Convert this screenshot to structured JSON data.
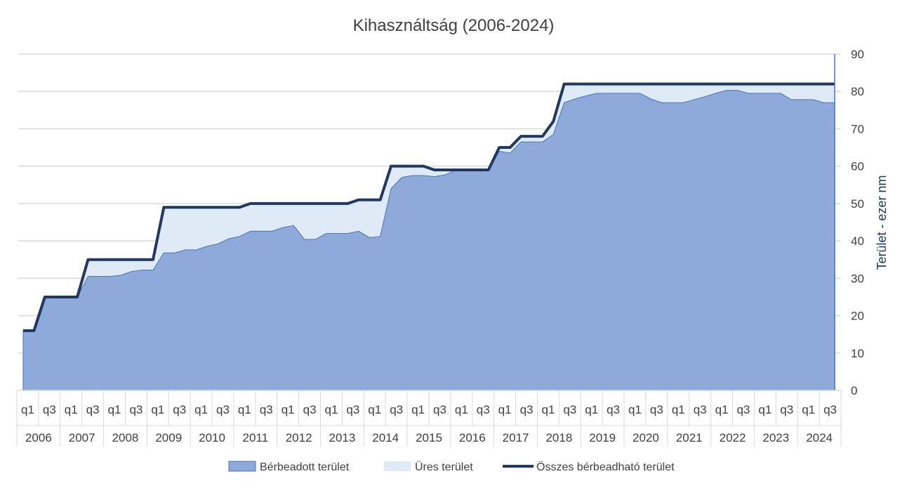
{
  "chart_data": {
    "type": "area",
    "title": "Kihasználtság (2006-2024)",
    "ylabel": "Terület - ezer nm",
    "ylim": [
      0,
      90
    ],
    "yticks": [
      0,
      10,
      20,
      30,
      40,
      50,
      60,
      70,
      80,
      90
    ],
    "y_axis_side": "right",
    "grid": true,
    "legend_position": "bottom",
    "years": [
      "2006",
      "2007",
      "2008",
      "2009",
      "2010",
      "2011",
      "2012",
      "2013",
      "2014",
      "2015",
      "2016",
      "2017",
      "2018",
      "2019",
      "2020",
      "2021",
      "2022",
      "2023",
      "2024"
    ],
    "quarter_tick_labels": [
      "q1",
      "q3"
    ],
    "x": [
      "2006 q1",
      "2006 q2",
      "2006 q3",
      "2006 q4",
      "2007 q1",
      "2007 q2",
      "2007 q3",
      "2007 q4",
      "2008 q1",
      "2008 q2",
      "2008 q3",
      "2008 q4",
      "2009 q1",
      "2009 q2",
      "2009 q3",
      "2009 q4",
      "2010 q1",
      "2010 q2",
      "2010 q3",
      "2010 q4",
      "2011 q1",
      "2011 q2",
      "2011 q3",
      "2011 q4",
      "2012 q1",
      "2012 q2",
      "2012 q3",
      "2012 q4",
      "2013 q1",
      "2013 q2",
      "2013 q3",
      "2013 q4",
      "2014 q1",
      "2014 q2",
      "2014 q3",
      "2014 q4",
      "2015 q1",
      "2015 q2",
      "2015 q3",
      "2015 q4",
      "2016 q1",
      "2016 q2",
      "2016 q3",
      "2016 q4",
      "2017 q1",
      "2017 q2",
      "2017 q3",
      "2017 q4",
      "2018 q1",
      "2018 q2",
      "2018 q3",
      "2018 q4",
      "2019 q1",
      "2019 q2",
      "2019 q3",
      "2019 q4",
      "2020 q1",
      "2020 q2",
      "2020 q3",
      "2020 q4",
      "2021 q1",
      "2021 q2",
      "2021 q3",
      "2021 q4",
      "2022 q1",
      "2022 q2",
      "2022 q3",
      "2022 q4",
      "2023 q1",
      "2023 q2",
      "2023 q3",
      "2023 q4",
      "2024 q1",
      "2024 q2",
      "2024 q3",
      "2024 q4"
    ],
    "series": [
      {
        "name": "Bérbeadott terület",
        "kind": "area",
        "color": "#8eaadb",
        "values": [
          16,
          16,
          25,
          25,
          25,
          25,
          30.5,
          30.5,
          30.5,
          30.8,
          31.8,
          32.2,
          32.2,
          36.8,
          36.8,
          37.6,
          37.6,
          38.6,
          39.2,
          40.6,
          41.2,
          42.6,
          42.6,
          42.6,
          43.6,
          44.1,
          40.4,
          40.4,
          42,
          42,
          42,
          42.6,
          40.9,
          41.2,
          54,
          57,
          57.5,
          57.5,
          57.2,
          57.7,
          59,
          59,
          59,
          59,
          64,
          63.5,
          66.5,
          66.5,
          66.5,
          68.5,
          77,
          78,
          78.8,
          79.5,
          79.5,
          79.5,
          79.5,
          79.5,
          78,
          77,
          77,
          77,
          77.8,
          78.6,
          79.5,
          80.3,
          80.3,
          79.5,
          79.5,
          79.5,
          79.5,
          77.8,
          77.8,
          77.8,
          77,
          77
        ]
      },
      {
        "name": "Üres terület",
        "kind": "area",
        "color": "#deebf7",
        "values": [
          0,
          0,
          0,
          0,
          0,
          0,
          4.5,
          4.5,
          4.5,
          4.2,
          3.2,
          2.8,
          2.8,
          12.2,
          12.2,
          11.4,
          11.4,
          10.4,
          9.8,
          8.4,
          7.8,
          7.4,
          7.4,
          7.4,
          6.4,
          5.9,
          9.6,
          9.6,
          8,
          8,
          8,
          8.4,
          10.1,
          9.8,
          6,
          3,
          2.5,
          2.5,
          1.8,
          1.3,
          0,
          0,
          0,
          0,
          1,
          1.5,
          1.5,
          1.5,
          1.5,
          3.5,
          5,
          4,
          3.2,
          2.5,
          2.5,
          2.5,
          2.5,
          2.5,
          4,
          5,
          5,
          5,
          4.2,
          3.4,
          2.5,
          1.7,
          1.7,
          2.5,
          2.5,
          2.5,
          2.5,
          4.2,
          4.2,
          4.2,
          5,
          5
        ]
      },
      {
        "name": "Összes bérbeadható terület",
        "kind": "line",
        "color": "#1f3864",
        "values": [
          16,
          16,
          25,
          25,
          25,
          25,
          35,
          35,
          35,
          35,
          35,
          35,
          35,
          49,
          49,
          49,
          49,
          49,
          49,
          49,
          49,
          50,
          50,
          50,
          50,
          50,
          50,
          50,
          50,
          50,
          50,
          51,
          51,
          51,
          60,
          60,
          60,
          60,
          59,
          59,
          59,
          59,
          59,
          59,
          65,
          65,
          68,
          68,
          68,
          72,
          82,
          82,
          82,
          82,
          82,
          82,
          82,
          82,
          82,
          82,
          82,
          82,
          82,
          82,
          82,
          82,
          82,
          82,
          82,
          82,
          82,
          82,
          82,
          82,
          82,
          82
        ]
      }
    ]
  }
}
